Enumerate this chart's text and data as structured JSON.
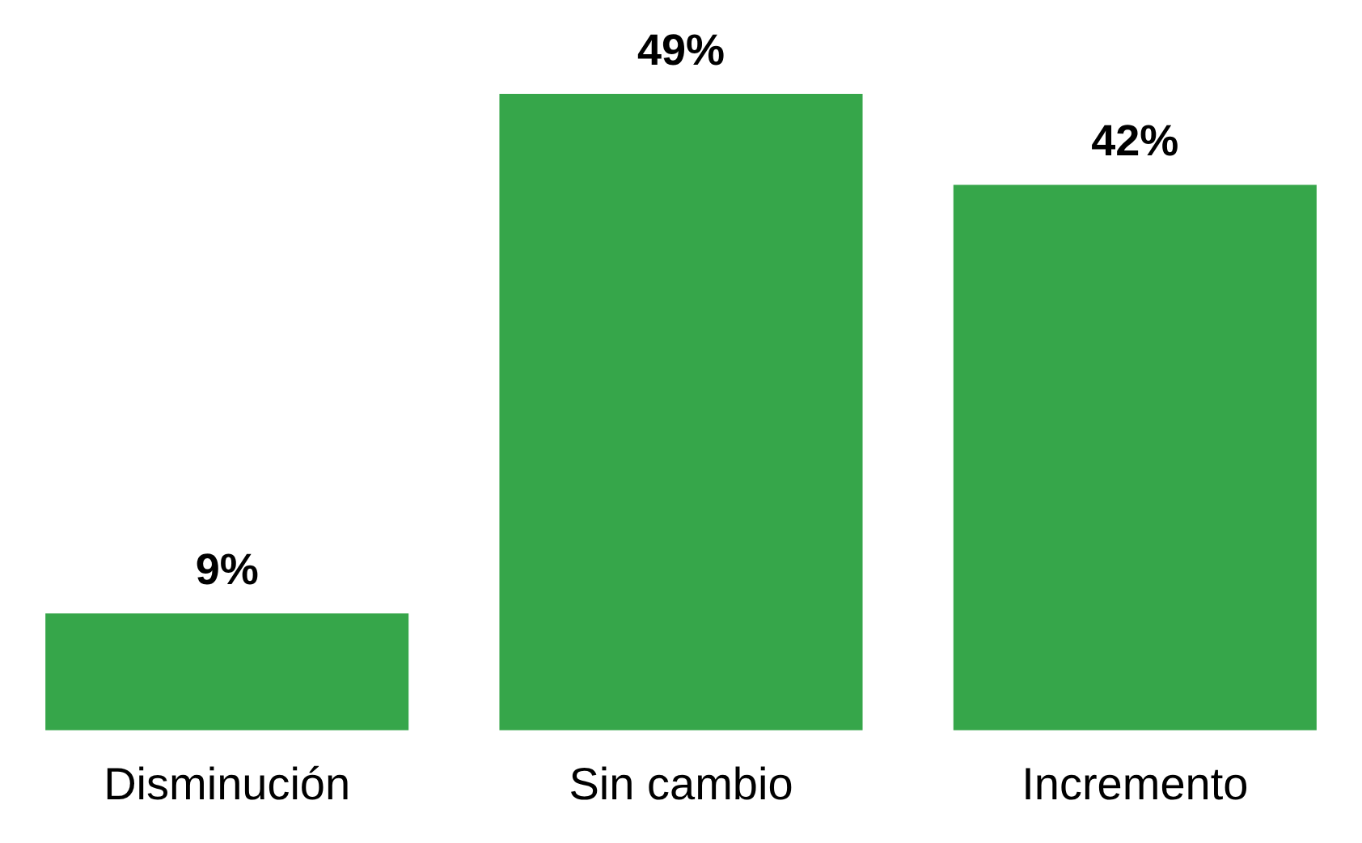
{
  "chart_data": {
    "type": "bar",
    "categories": [
      "Disminución",
      "Sin cambio",
      "Incremento"
    ],
    "values": [
      9,
      49,
      42
    ],
    "color": "#36a64a",
    "value_labels": [
      "9%",
      "49%",
      "42%"
    ],
    "grid": false,
    "legend": false,
    "tick_labels": "x"
  }
}
